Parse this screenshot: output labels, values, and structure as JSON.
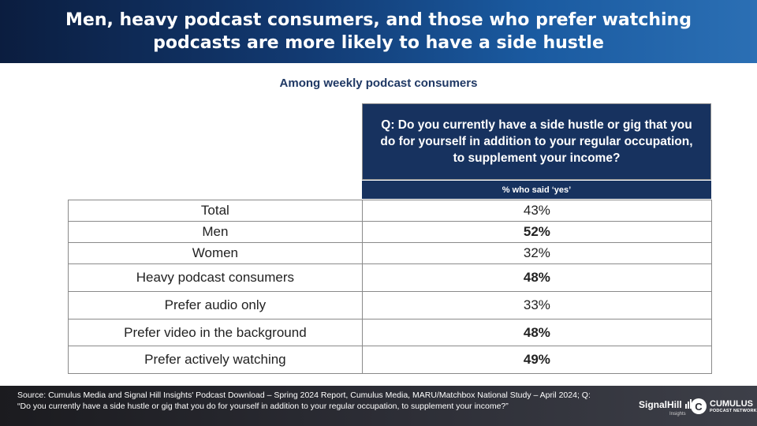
{
  "title": "Men, heavy podcast consumers, and those who prefer watching podcasts are more likely to have a side hustle",
  "subtitle": "Among weekly podcast consumers",
  "question": "Q: Do you currently have a side hustle or gig that you do for yourself in addition to your regular occupation, to supplement your income?",
  "column_header": "% who said ‘yes’",
  "rows": [
    {
      "label": "Total",
      "value": "43%",
      "bold": false
    },
    {
      "label": "Men",
      "value": "52%",
      "bold": true
    },
    {
      "label": "Women",
      "value": "32%",
      "bold": false
    },
    {
      "label": "Heavy podcast consumers",
      "value": "48%",
      "bold": true
    },
    {
      "label": "Prefer audio only",
      "value": "33%",
      "bold": false
    },
    {
      "label": "Prefer video in the background",
      "value": "48%",
      "bold": true
    },
    {
      "label": "Prefer actively watching",
      "value": "49%",
      "bold": true
    }
  ],
  "source": "Source: Cumulus Media and Signal Hill Insights' Podcast Download – Spring 2024 Report, Cumulus Media, MARU/Matchbox National Study – April 2024; Q: “Do you currently have a side hustle or gig that you do for yourself in addition to your regular occupation, to supplement your income?”",
  "logos": {
    "signal_hill": "SignalHill",
    "signal_hill_sub": "Insights",
    "cumulus": "CUMULUS",
    "cumulus_sub": "PODCAST NETWORK",
    "cumulus_mark": "C"
  },
  "colors": {
    "header_dark": "#0b1d3f",
    "header_light": "#2b6fb4",
    "question_bg": "#17325f",
    "subtitle": "#1f3864",
    "footer_bg": "#2c2d35"
  }
}
